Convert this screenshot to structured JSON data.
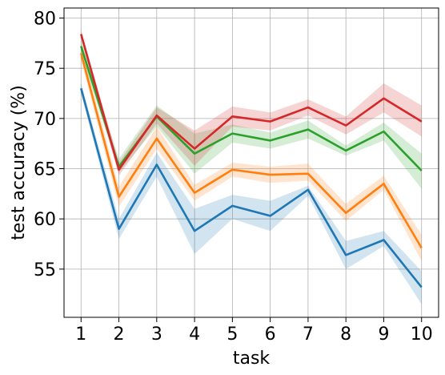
{
  "chart_data": {
    "type": "line",
    "title": "",
    "xlabel": "task",
    "ylabel": "test accuracy (%)",
    "x": [
      1,
      2,
      3,
      4,
      5,
      6,
      7,
      8,
      9,
      10
    ],
    "xlim": [
      0.55,
      10.45
    ],
    "ylim": [
      50.2,
      81.0
    ],
    "xticks": [
      1,
      2,
      3,
      4,
      5,
      6,
      7,
      8,
      9,
      10
    ],
    "yticks": [
      55,
      60,
      65,
      70,
      75,
      80
    ],
    "grid": true,
    "series": [
      {
        "color": "#1f77b4",
        "values": [
          73.0,
          59.0,
          65.4,
          58.8,
          61.3,
          60.3,
          62.9,
          56.4,
          57.9,
          53.2
        ],
        "lower": [
          72.5,
          58.0,
          64.2,
          56.5,
          60.0,
          58.8,
          62.3,
          55.0,
          57.3,
          51.5
        ],
        "upper": [
          73.5,
          60.0,
          66.6,
          61.0,
          62.4,
          61.8,
          63.3,
          57.8,
          58.8,
          54.8
        ]
      },
      {
        "color": "#ff7f0e",
        "values": [
          76.5,
          62.2,
          68.0,
          62.6,
          64.9,
          64.4,
          64.5,
          60.6,
          63.5,
          57.1
        ],
        "lower": [
          75.8,
          61.2,
          67.0,
          61.8,
          64.2,
          63.6,
          63.8,
          59.8,
          62.9,
          55.8
        ],
        "upper": [
          77.2,
          63.2,
          69.2,
          63.4,
          65.6,
          65.2,
          65.5,
          61.5,
          64.3,
          58.4
        ]
      },
      {
        "color": "#2ca02c",
        "values": [
          77.2,
          65.2,
          70.2,
          66.5,
          68.5,
          67.8,
          68.9,
          66.8,
          68.7,
          64.8
        ],
        "lower": [
          76.5,
          64.6,
          69.2,
          64.5,
          67.6,
          67.0,
          68.0,
          66.3,
          67.8,
          63.0
        ],
        "upper": [
          77.9,
          66.0,
          71.3,
          68.5,
          69.4,
          68.6,
          69.8,
          67.3,
          69.6,
          66.5
        ]
      },
      {
        "color": "#d62728",
        "values": [
          78.4,
          64.9,
          70.3,
          67.0,
          70.2,
          69.7,
          71.1,
          69.3,
          72.0,
          69.7
        ],
        "lower": [
          78.0,
          64.3,
          69.5,
          65.3,
          69.2,
          68.8,
          70.3,
          68.4,
          70.6,
          68.2
        ],
        "upper": [
          78.8,
          65.6,
          71.1,
          68.8,
          71.2,
          70.6,
          71.9,
          70.2,
          73.5,
          71.3
        ]
      }
    ]
  }
}
